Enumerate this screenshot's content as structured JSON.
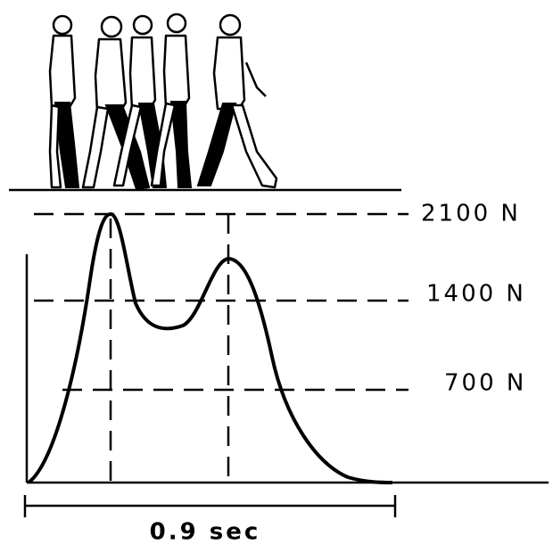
{
  "levels": [
    "2100 N",
    "1400 N",
    "700 N"
  ],
  "duration": "0.9 sec"
}
